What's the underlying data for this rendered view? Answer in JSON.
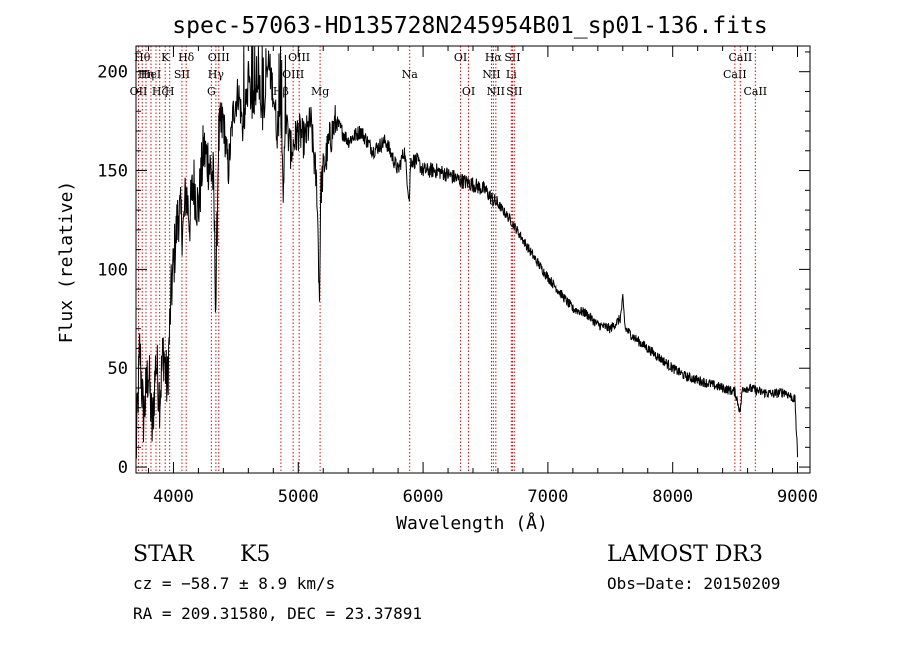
{
  "chart_data": {
    "type": "line",
    "title": "spec-57063-HD135728N245954B01_sp01-136.fits",
    "xlabel": "Wavelength (Å)",
    "ylabel": "Flux (relative)",
    "xlim": [
      3700,
      9100
    ],
    "ylim": [
      -3,
      213
    ],
    "xticks": [
      4000,
      5000,
      6000,
      7000,
      8000,
      9000
    ],
    "yticks": [
      0,
      50,
      100,
      150,
      200
    ],
    "x_minor_step": 200,
    "y_minor_step": 10,
    "series": [
      {
        "name": "spectrum",
        "x": [
          3700,
          3730,
          3760,
          3800,
          3830,
          3860,
          3890,
          3920,
          3950,
          3980,
          4010,
          4040,
          4080,
          4100,
          4130,
          4160,
          4200,
          4240,
          4280,
          4300,
          4320,
          4340,
          4360,
          4400,
          4440,
          4480,
          4520,
          4560,
          4600,
          4640,
          4680,
          4720,
          4760,
          4800,
          4830,
          4860,
          4880,
          4900,
          4940,
          5000,
          5050,
          5100,
          5150,
          5170,
          5180,
          5200,
          5250,
          5300,
          5400,
          5500,
          5600,
          5700,
          5800,
          5850,
          5890,
          5900,
          5950,
          6000,
          6100,
          6200,
          6300,
          6400,
          6500,
          6560,
          6600,
          6700,
          6800,
          6900,
          7000,
          7100,
          7200,
          7300,
          7400,
          7500,
          7580,
          7600,
          7620,
          7700,
          7800,
          7900,
          8000,
          8100,
          8200,
          8300,
          8400,
          8500,
          8540,
          8560,
          8600,
          8660,
          8700,
          8800,
          8900,
          8980,
          9000
        ],
        "y": [
          5,
          60,
          25,
          50,
          18,
          55,
          35,
          60,
          40,
          85,
          110,
          130,
          120,
          140,
          125,
          145,
          130,
          160,
          155,
          150,
          145,
          80,
          165,
          175,
          150,
          180,
          190,
          170,
          195,
          180,
          200,
          175,
          205,
          190,
          170,
          185,
          140,
          175,
          160,
          170,
          165,
          175,
          140,
          85,
          140,
          150,
          165,
          175,
          165,
          170,
          160,
          165,
          150,
          160,
          135,
          155,
          155,
          150,
          150,
          148,
          145,
          143,
          140,
          135,
          133,
          125,
          115,
          105,
          96,
          88,
          80,
          78,
          72,
          70,
          75,
          85,
          70,
          65,
          60,
          55,
          50,
          46,
          44,
          42,
          40,
          38,
          28,
          40,
          40,
          39,
          38,
          37,
          38,
          34,
          5
        ]
      }
    ],
    "lines": [
      {
        "x": 3720,
        "label": "OII",
        "row": 3
      },
      {
        "x": 3750,
        "label": "Hθ",
        "row": 1
      },
      {
        "x": 3780,
        "label": "Hη",
        "row": 2
      },
      {
        "x": 3820,
        "label": "HeI",
        "row": 2
      },
      {
        "x": 3860,
        "label": "",
        "row": 0
      },
      {
        "x": 3890,
        "label": "Hζ",
        "row": 3
      },
      {
        "x": 3934,
        "label": "K",
        "row": 1
      },
      {
        "x": 3970,
        "label": "H",
        "row": 3
      },
      {
        "x": 4068,
        "label": "SII",
        "row": 2
      },
      {
        "x": 4102,
        "label": "Hδ",
        "row": 1
      },
      {
        "x": 4304,
        "label": "G",
        "row": 3
      },
      {
        "x": 4340,
        "label": "Hγ",
        "row": 2
      },
      {
        "x": 4363,
        "label": "OIII",
        "row": 1
      },
      {
        "x": 4861,
        "label": "Hβ",
        "row": 3
      },
      {
        "x": 4959,
        "label": "OIII",
        "row": 2
      },
      {
        "x": 5007,
        "label": "OIII",
        "row": 1
      },
      {
        "x": 5175,
        "label": "Mg",
        "row": 3
      },
      {
        "x": 5893,
        "label": "Na",
        "row": 2
      },
      {
        "x": 6300,
        "label": "OI",
        "row": 1
      },
      {
        "x": 6364,
        "label": "OI",
        "row": 3
      },
      {
        "x": 6548,
        "label": "NII",
        "row": 2
      },
      {
        "x": 6563,
        "label": "Hα",
        "row": 1
      },
      {
        "x": 6583,
        "label": "NII",
        "row": 3
      },
      {
        "x": 6707,
        "label": "Li",
        "row": 2
      },
      {
        "x": 6716,
        "label": "SII",
        "row": 1
      },
      {
        "x": 6731,
        "label": "SII",
        "row": 3
      },
      {
        "x": 8498,
        "label": "CaII",
        "row": 2
      },
      {
        "x": 8542,
        "label": "CaII",
        "row": 1
      },
      {
        "x": 8662,
        "label": "CaII",
        "row": 3
      }
    ]
  },
  "info": {
    "object_class": "STAR",
    "subclass": "K5",
    "survey": "LAMOST DR3",
    "redshift": "cz = −58.7 ± 8.9 km/s",
    "obs_date": "Obs−Date: 20150209",
    "coords": "RA = 209.31580, DEC =  23.37891"
  },
  "colors": {
    "line": "#000000",
    "marker": "#d01010",
    "background": "#ffffff"
  }
}
